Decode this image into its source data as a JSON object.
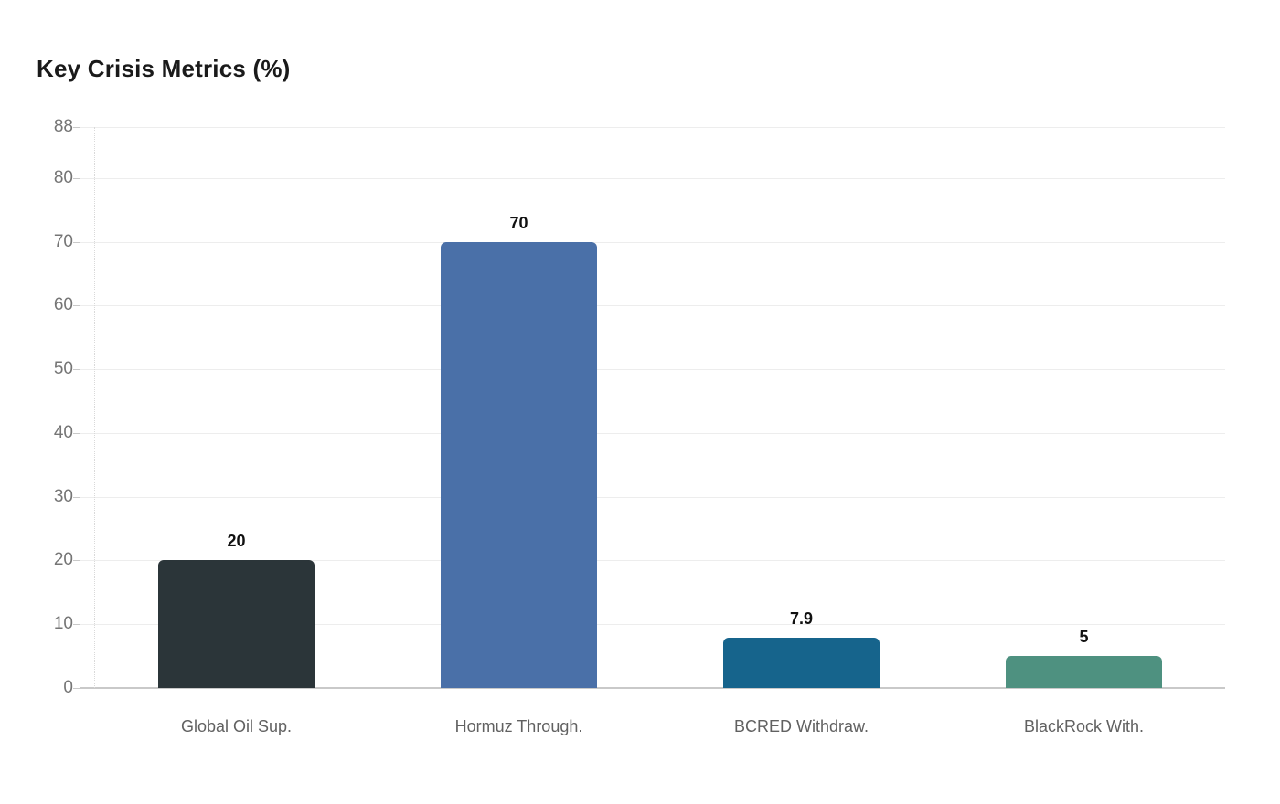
{
  "page": {
    "background": "#ffffff"
  },
  "chart_data": {
    "type": "bar",
    "title": "Key Crisis Metrics (%)",
    "categories": [
      "Global Oil Sup.",
      "Hormuz Through.",
      "BCRED Withdraw.",
      "BlackRock With."
    ],
    "values": [
      20,
      70,
      7.9,
      5
    ],
    "value_labels": [
      "20",
      "70",
      "7.9",
      "5"
    ],
    "bar_colors": [
      "#2b3539",
      "#4a70a8",
      "#16648c",
      "#4e9180"
    ],
    "yticks": [
      0,
      10,
      20,
      30,
      40,
      50,
      60,
      70,
      80,
      88
    ],
    "ylim": [
      0,
      88
    ],
    "xlabel": "",
    "ylabel": "",
    "grid": true,
    "legend_position": "none",
    "style": {
      "title_color": "#1a1a1a",
      "grid_color": "#ededed",
      "baseline_color": "#c9c9c9",
      "tick_mark_color": "#c9c9c9",
      "y_tick_label_color": "#757575",
      "x_tick_label_color": "#616161",
      "value_label_color": "#111111",
      "axis_dotted_color": "#d9d9d9"
    }
  }
}
